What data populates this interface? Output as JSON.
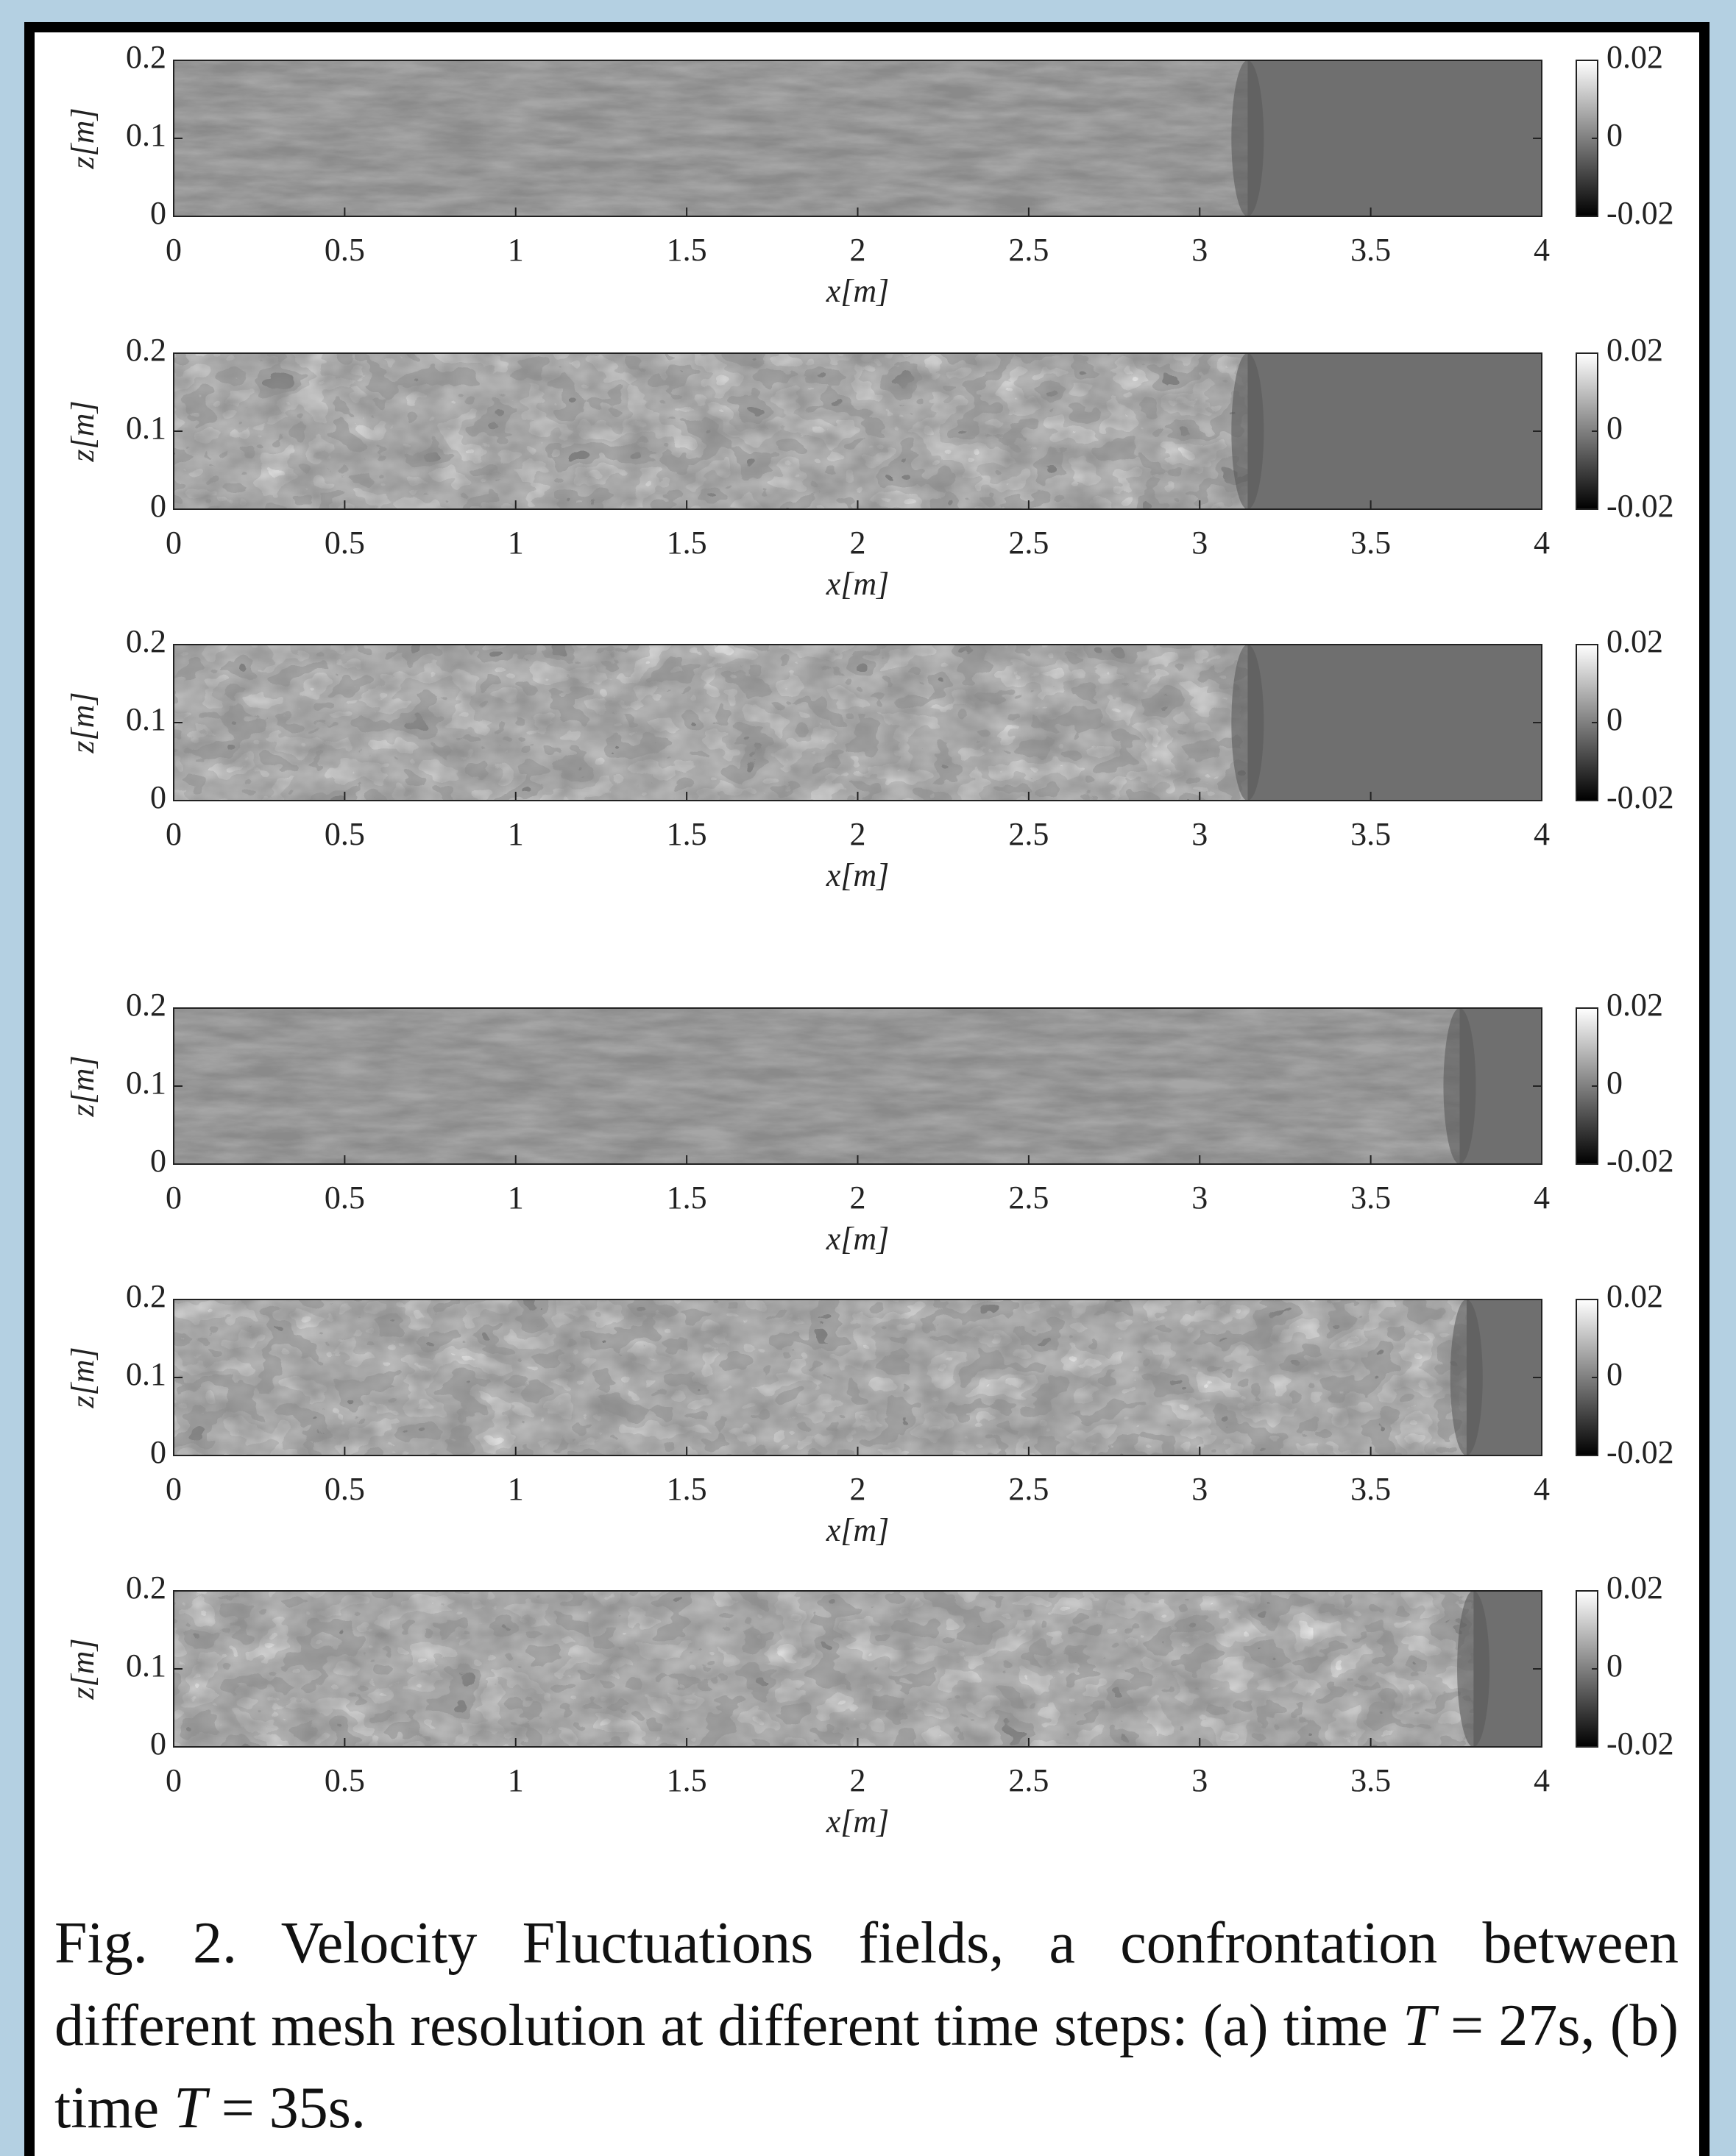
{
  "chart_data": [
    {
      "type": "heatmap",
      "colormap": "gray",
      "xlabel": "x[m]",
      "ylabel": "z[m]",
      "xlim": [
        0,
        4
      ],
      "xticks": [
        0,
        0.5,
        1,
        1.5,
        2,
        2.5,
        3,
        3.5,
        4
      ],
      "ylim": [
        0,
        0.2
      ],
      "yticks": [
        0,
        0.1,
        0.2
      ],
      "clim": [
        -0.02,
        0.02
      ],
      "cticks": [
        -0.02,
        0,
        0.02
      ]
    },
    {
      "type": "heatmap",
      "colormap": "gray",
      "xlabel": "x[m]",
      "ylabel": "z[m]",
      "xlim": [
        0,
        4
      ],
      "xticks": [
        0,
        0.5,
        1,
        1.5,
        2,
        2.5,
        3,
        3.5,
        4
      ],
      "ylim": [
        0,
        0.2
      ],
      "yticks": [
        0,
        0.1,
        0.2
      ],
      "clim": [
        -0.02,
        0.02
      ],
      "cticks": [
        -0.02,
        0,
        0.02
      ]
    },
    {
      "type": "heatmap",
      "colormap": "gray",
      "xlabel": "x[m]",
      "ylabel": "z[m]",
      "xlim": [
        0,
        4
      ],
      "xticks": [
        0,
        0.5,
        1,
        1.5,
        2,
        2.5,
        3,
        3.5,
        4
      ],
      "ylim": [
        0,
        0.2
      ],
      "yticks": [
        0,
        0.1,
        0.2
      ],
      "clim": [
        -0.02,
        0.02
      ],
      "cticks": [
        -0.02,
        0,
        0.02
      ]
    },
    {
      "type": "heatmap",
      "colormap": "gray",
      "xlabel": "x[m]",
      "ylabel": "z[m]",
      "xlim": [
        0,
        4
      ],
      "xticks": [
        0,
        0.5,
        1,
        1.5,
        2,
        2.5,
        3,
        3.5,
        4
      ],
      "ylim": [
        0,
        0.2
      ],
      "yticks": [
        0,
        0.1,
        0.2
      ],
      "clim": [
        -0.02,
        0.02
      ],
      "cticks": [
        -0.02,
        0,
        0.02
      ]
    },
    {
      "type": "heatmap",
      "colormap": "gray",
      "xlabel": "x[m]",
      "ylabel": "z[m]",
      "xlim": [
        0,
        4
      ],
      "xticks": [
        0,
        0.5,
        1,
        1.5,
        2,
        2.5,
        3,
        3.5,
        4
      ],
      "ylim": [
        0,
        0.2
      ],
      "yticks": [
        0,
        0.1,
        0.2
      ],
      "clim": [
        -0.02,
        0.02
      ],
      "cticks": [
        -0.02,
        0,
        0.02
      ]
    },
    {
      "type": "heatmap",
      "colormap": "gray",
      "xlabel": "x[m]",
      "ylabel": "z[m]",
      "xlim": [
        0,
        4
      ],
      "xticks": [
        0,
        0.5,
        1,
        1.5,
        2,
        2.5,
        3,
        3.5,
        4
      ],
      "ylim": [
        0,
        0.2
      ],
      "yticks": [
        0,
        0.1,
        0.2
      ],
      "clim": [
        -0.02,
        0.02
      ],
      "cticks": [
        -0.02,
        0,
        0.02
      ]
    }
  ],
  "caption": [
    "Fig. 2. Velocity Fluctuations fields, a confrontation between different mesh resolution at different time steps: (a) time ",
    "T",
    " = 27s, (b) time ",
    "T",
    " = 35s."
  ]
}
